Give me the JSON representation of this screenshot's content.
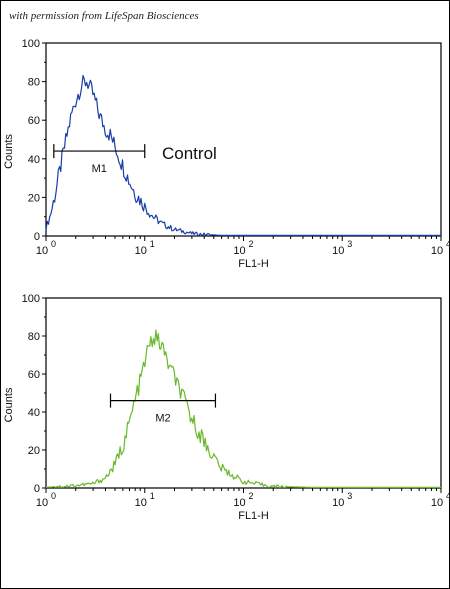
{
  "watermark": "with permission from LifeSpan Biosciences",
  "chart_data": [
    {
      "type": "line",
      "xlabel": "FL1-H",
      "ylabel": "Counts",
      "x_scale": "log",
      "xlim": [
        1,
        10000
      ],
      "ylim": [
        0,
        100
      ],
      "x_ticks": [
        1,
        10,
        100,
        1000,
        10000
      ],
      "y_ticks": [
        0,
        20,
        40,
        60,
        80,
        100
      ],
      "grid": false,
      "annotation": "Control",
      "gate": {
        "name": "M1",
        "x_start": 1.2,
        "x_end": 10,
        "y": 44
      },
      "series": [
        {
          "color": "#1a3da8",
          "x": [
            1,
            1.1,
            1.2,
            1.4,
            1.6,
            1.8,
            2.0,
            2.3,
            2.6,
            3.0,
            3.5,
            4.0,
            4.5,
            5.0,
            6.0,
            7.0,
            8.0,
            10,
            12,
            15,
            20,
            25,
            30,
            40,
            60,
            100,
            1000,
            10000
          ],
          "y": [
            4,
            10,
            18,
            35,
            50,
            62,
            70,
            78,
            80,
            73,
            62,
            55,
            52,
            46,
            36,
            28,
            22,
            15,
            10,
            6,
            3,
            2,
            1,
            0.5,
            0,
            0,
            0,
            0
          ]
        }
      ]
    },
    {
      "type": "line",
      "xlabel": "FL1-H",
      "ylabel": "Counts",
      "x_scale": "log",
      "xlim": [
        1,
        10000
      ],
      "ylim": [
        0,
        100
      ],
      "x_ticks": [
        1,
        10,
        100,
        1000,
        10000
      ],
      "y_ticks": [
        0,
        20,
        40,
        60,
        80,
        100
      ],
      "grid": false,
      "gate": {
        "name": "M2",
        "x_start": 4.5,
        "x_end": 52,
        "y": 46
      },
      "series": [
        {
          "color": "#6ab82c",
          "x": [
            1,
            2,
            3,
            4,
            5,
            6,
            7,
            8,
            9,
            10,
            11,
            12,
            13,
            15,
            17,
            20,
            25,
            30,
            40,
            50,
            60,
            80,
            100,
            150,
            200,
            500,
            1000,
            10000
          ],
          "y": [
            0,
            1,
            2,
            5,
            12,
            22,
            34,
            46,
            56,
            66,
            74,
            78,
            79,
            74,
            66,
            58,
            46,
            36,
            24,
            16,
            10,
            6,
            3,
            1.5,
            0.5,
            0,
            0,
            0
          ]
        }
      ]
    }
  ]
}
